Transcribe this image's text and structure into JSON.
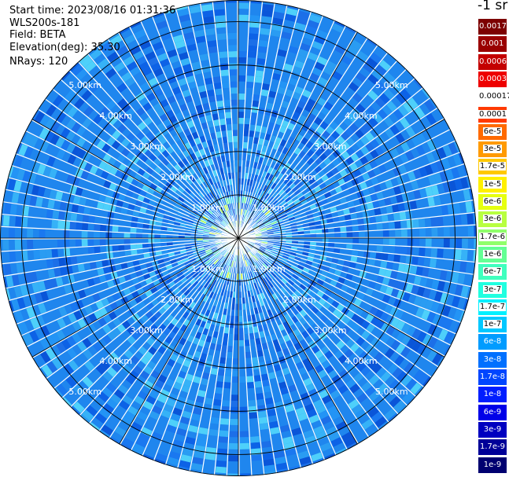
{
  "header": {
    "start_time": "Start time: 2023/08/16 01:31:36",
    "instrument": "WLS200s-181",
    "field": "Field: BETA",
    "elevation": "Elevation(deg): 35.30",
    "nrays": "NRays: 120"
  },
  "chart_data": {
    "type": "heatmap",
    "projection": "polar (PPI)",
    "field": "BETA",
    "unit_label": "-1 sr",
    "n_rays": 120,
    "range_rings_km": [
      1,
      2,
      3,
      4,
      5
    ],
    "range_labels": [
      "1.00km",
      "2.00km",
      "3.00km",
      "4.00km",
      "5.00km"
    ],
    "max_range_km": 5.5,
    "spokes_deg": [
      0,
      30,
      60,
      90,
      120,
      150,
      180,
      210,
      240,
      270,
      300,
      330
    ],
    "colorbar": [
      {
        "label": "0.0017",
        "color": "#7d0000"
      },
      {
        "label": "0.001",
        "color": "#9a0000"
      },
      {
        "label": "0.0006",
        "color": "#c40000"
      },
      {
        "label": "0.0003",
        "color": "#ee0000"
      },
      {
        "label": "0.00017",
        "color": "#ffffff"
      },
      {
        "label": "0.0001",
        "color": "#ff3a00"
      },
      {
        "label": "6e-5",
        "color": "#ff6a00"
      },
      {
        "label": "3e-5",
        "color": "#ff9a00"
      },
      {
        "label": "1.7e-5",
        "color": "#ffc800"
      },
      {
        "label": "1e-5",
        "color": "#fff000"
      },
      {
        "label": "6e-6",
        "color": "#e6ff10"
      },
      {
        "label": "3e-6",
        "color": "#b8ff40"
      },
      {
        "label": "1.7e-6",
        "color": "#90ff6a"
      },
      {
        "label": "1e-6",
        "color": "#64ff94"
      },
      {
        "label": "6e-7",
        "color": "#40ffbe"
      },
      {
        "label": "3e-7",
        "color": "#20ffe0"
      },
      {
        "label": "1.7e-7",
        "color": "#00f0ff"
      },
      {
        "label": "1e-7",
        "color": "#00c8ff"
      },
      {
        "label": "6e-8",
        "color": "#009cff"
      },
      {
        "label": "3e-8",
        "color": "#0070ff"
      },
      {
        "label": "1.7e-8",
        "color": "#0046ff"
      },
      {
        "label": "1e-8",
        "color": "#001eff"
      },
      {
        "label": "6e-9",
        "color": "#0000e8"
      },
      {
        "label": "3e-9",
        "color": "#0000c0"
      },
      {
        "label": "1.7e-9",
        "color": "#000098"
      },
      {
        "label": "1e-9",
        "color": "#000070"
      }
    ]
  }
}
